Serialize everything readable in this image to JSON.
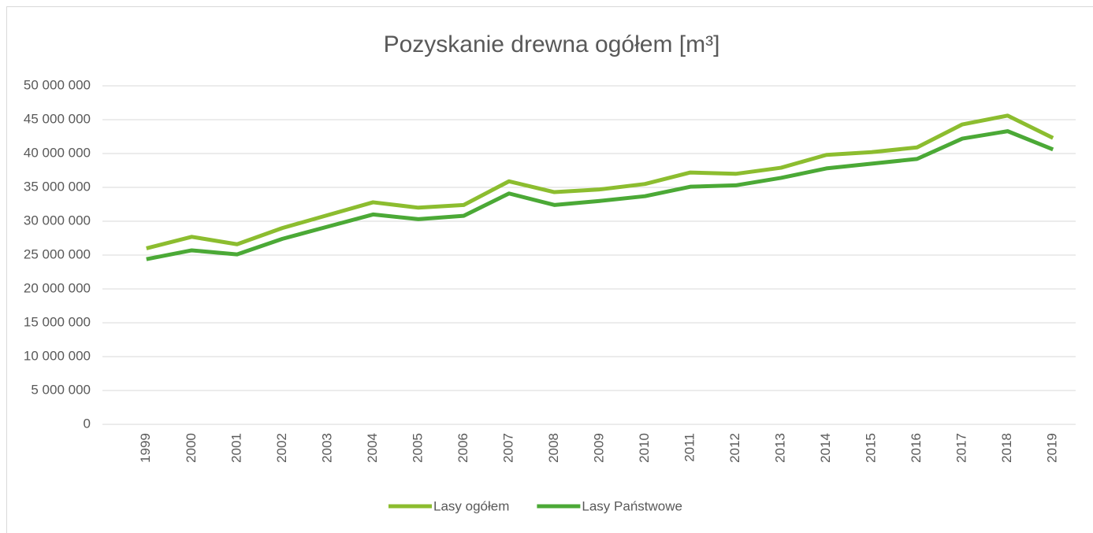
{
  "chart_data": {
    "type": "line",
    "title": "Pozyskanie drewna ogółem [m³]",
    "categories": [
      "1999",
      "2000",
      "2001",
      "2002",
      "2003",
      "2004",
      "2005",
      "2006",
      "2007",
      "2008",
      "2009",
      "2010",
      "2011",
      "2012",
      "2013",
      "2014",
      "2015",
      "2016",
      "2017",
      "2018",
      "2019"
    ],
    "series": [
      {
        "name": "Lasy ogółem",
        "color": "#8cbd2f",
        "values": [
          26000000,
          27700000,
          26600000,
          29000000,
          30900000,
          32800000,
          32000000,
          32400000,
          35900000,
          34300000,
          34700000,
          35500000,
          37200000,
          37000000,
          37900000,
          39800000,
          40200000,
          40900000,
          44300000,
          45600000,
          42300000
        ]
      },
      {
        "name": "Lasy Państwowe",
        "color": "#4ba936",
        "values": [
          24400000,
          25700000,
          25100000,
          27400000,
          29200000,
          31000000,
          30300000,
          30800000,
          34100000,
          32400000,
          33000000,
          33700000,
          35100000,
          35300000,
          36400000,
          37800000,
          38500000,
          39200000,
          42200000,
          43300000,
          40600000
        ]
      }
    ],
    "ylim": [
      0,
      50000000
    ],
    "yticks": [
      0,
      {
        "value": 5000000,
        "label": "5 000 000"
      },
      {
        "value": 10000000,
        "label": "10 000 000"
      },
      {
        "value": 15000000,
        "label": "15 000 000"
      },
      {
        "value": 20000000,
        "label": "20 000 000"
      },
      {
        "value": 25000000,
        "label": "25 000 000"
      },
      {
        "value": 30000000,
        "label": "30 000 000"
      },
      {
        "value": 35000000,
        "label": "35 000 000"
      },
      {
        "value": 40000000,
        "label": "40 000 000"
      },
      {
        "value": 45000000,
        "label": "45 000 000"
      },
      {
        "value": 50000000,
        "label": "50 000 000"
      }
    ],
    "grid": true,
    "legend": "bottom"
  }
}
